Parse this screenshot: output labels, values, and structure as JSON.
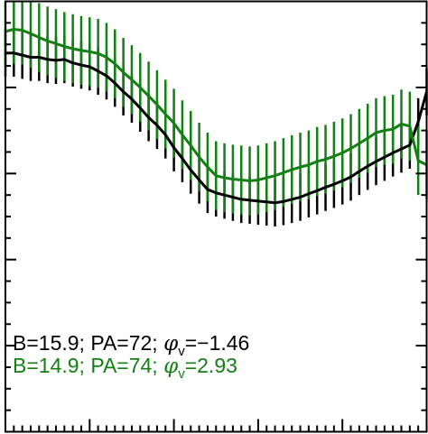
{
  "chart_data": {
    "type": "line",
    "title": "",
    "xlabel": "",
    "ylabel": "",
    "xlim": [
      0,
      100
    ],
    "ylim": [
      0,
      100
    ],
    "grid": false,
    "legend_placement": "bottom-left",
    "x": [
      0,
      2,
      4,
      6,
      8,
      10,
      12,
      14,
      16,
      18,
      20,
      22,
      24,
      26,
      28,
      30,
      32,
      34,
      36,
      38,
      40,
      42,
      44,
      46,
      48,
      50,
      52,
      54,
      56,
      58,
      60,
      62,
      64,
      66,
      68,
      70,
      72,
      74,
      76,
      78,
      80,
      82,
      84,
      86,
      88,
      90,
      92,
      94,
      96,
      98,
      100
    ],
    "series": [
      {
        "label": "B=15.9; PA=72; φ_v=−1.46",
        "label_parts": {
          "main": "B=15.9; PA=72; ",
          "phi": "φ",
          "sub": "v",
          "tail": "=−1.46"
        },
        "color": "#000000",
        "err": 5.5,
        "values": [
          88,
          88,
          87.5,
          87,
          87,
          86.5,
          86.3,
          86.5,
          85.7,
          85.2,
          84.8,
          83.8,
          82.7,
          81,
          79,
          77.3,
          75.2,
          73,
          71.2,
          69,
          66,
          63.5,
          60.8,
          58.5,
          56.3,
          55.5,
          55,
          54.5,
          54,
          53.8,
          53.6,
          53.4,
          53.2,
          53.5,
          54,
          54.5,
          55.3,
          56,
          56.8,
          57.5,
          58.3,
          59.2,
          60.5,
          61.7,
          62.8,
          63.8,
          64.8,
          65.7,
          66.6,
          72,
          79
        ]
      },
      {
        "label": "B=14.9; PA=74; φ_v=2.93",
        "label_parts": {
          "main": "B=14.9; PA=74; ",
          "phi": "φ",
          "sub": "v",
          "tail": "=2.93"
        },
        "color": "#128012",
        "err": 8,
        "values": [
          93,
          93.5,
          93.3,
          92.5,
          91.6,
          90.8,
          90.2,
          89.5,
          89,
          88.6,
          88.3,
          87.9,
          87,
          85.5,
          83.5,
          81.8,
          80,
          78,
          76,
          73.8,
          71.7,
          69,
          66.5,
          63.8,
          61.5,
          59.5,
          59,
          58.7,
          58.5,
          58.3,
          58.5,
          59,
          59.5,
          60.2,
          60.9,
          61.5,
          62,
          62.8,
          63.3,
          64,
          64.8,
          65.8,
          67,
          68.2,
          69.5,
          70,
          70.3,
          71.5,
          71,
          63,
          62
        ]
      }
    ]
  }
}
